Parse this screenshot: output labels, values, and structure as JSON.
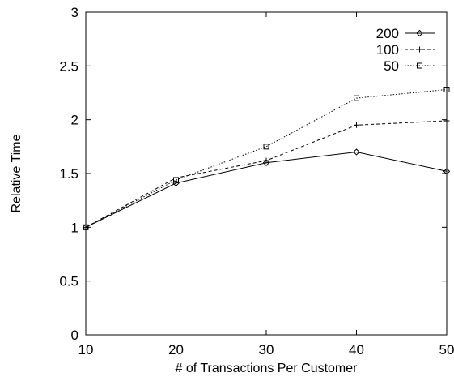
{
  "chart_data": {
    "type": "line",
    "title": "",
    "xlabel": "# of Transactions Per Customer",
    "ylabel": "Relative Time",
    "xlim": [
      10,
      50
    ],
    "ylim": [
      0,
      3
    ],
    "x_ticks": [
      "10",
      "20",
      "30",
      "40",
      "50"
    ],
    "y_ticks": [
      "0",
      "0.5",
      "1",
      "1.5",
      "2",
      "2.5",
      "3"
    ],
    "grid": false,
    "legend_position": "top-right",
    "x": [
      10,
      20,
      30,
      40,
      50
    ],
    "series": [
      {
        "name": "200",
        "values": [
          1.0,
          1.41,
          1.6,
          1.7,
          1.52
        ],
        "line_style": "solid",
        "marker": "diamond",
        "color": "#000000"
      },
      {
        "name": "100",
        "values": [
          1.0,
          1.46,
          1.62,
          1.95,
          1.99
        ],
        "line_style": "dashed",
        "marker": "plus",
        "color": "#000000"
      },
      {
        "name": "50",
        "values": [
          1.0,
          1.44,
          1.75,
          2.2,
          2.28
        ],
        "line_style": "dotted",
        "marker": "square",
        "color": "#000000"
      }
    ]
  }
}
